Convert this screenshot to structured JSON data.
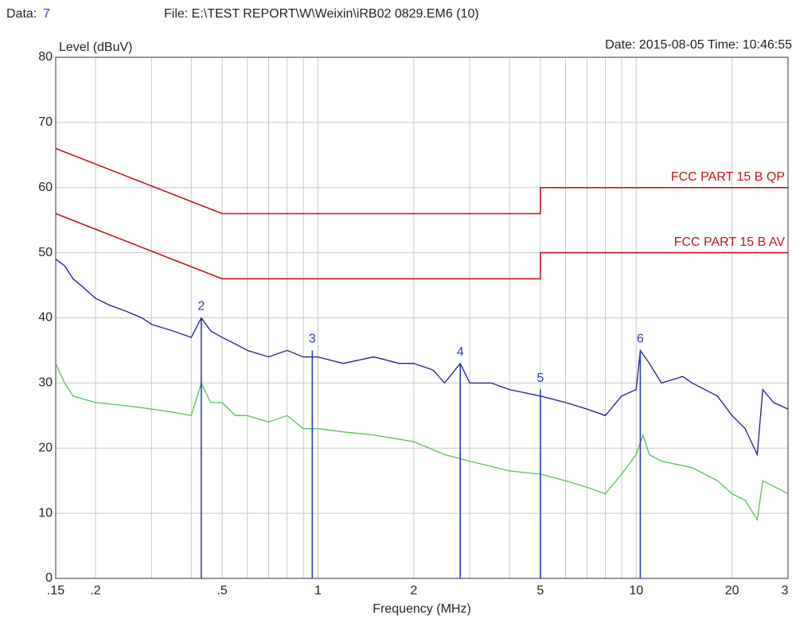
{
  "chart_data": {
    "type": "line",
    "header": {
      "data_label": "Data:",
      "data_value": "7",
      "file": "File: E:\\TEST REPORT\\W\\Weixin\\iRB02 0829.EM6  (10)",
      "date": "Date: 2015-08-05  Time: 10:46:55"
    },
    "y_label": "Level (dBuV)",
    "x_label": "Frequency (MHz)",
    "log_x": true,
    "grid": true,
    "xlim": [
      0.15,
      30
    ],
    "ylim": [
      0,
      80
    ],
    "xticks": [
      {
        "value": 0.15,
        "label": ".15"
      },
      {
        "value": 0.2,
        "label": ".2"
      },
      {
        "value": 0.5,
        "label": ".5"
      },
      1,
      2,
      5,
      10,
      20,
      {
        "value": 30,
        "label": "3"
      }
    ],
    "xminor": [
      0.3,
      0.4,
      0.6,
      0.7,
      0.8,
      0.9,
      3,
      4,
      6,
      7,
      8,
      9
    ],
    "yticks": [
      0,
      10,
      20,
      30,
      40,
      50,
      60,
      70,
      80
    ],
    "series": [
      {
        "name": "FCC PART 15 B QP",
        "color": "#c0141a",
        "x": [
          0.15,
          0.5,
          5,
          5,
          30
        ],
        "values": [
          66,
          56,
          56,
          60,
          60
        ]
      },
      {
        "name": "FCC PART 15 B AV",
        "color": "#c0141a",
        "x": [
          0.15,
          0.5,
          5,
          5,
          30
        ],
        "values": [
          56,
          46,
          46,
          50,
          50
        ]
      },
      {
        "color": "#1c1c8a",
        "x": [
          0.15,
          0.16,
          0.17,
          0.18,
          0.2,
          0.22,
          0.25,
          0.28,
          0.3,
          0.35,
          0.4,
          0.43,
          0.46,
          0.5,
          0.55,
          0.6,
          0.7,
          0.8,
          0.9,
          1,
          1.2,
          1.5,
          1.8,
          2,
          2.3,
          2.5,
          2.8,
          3,
          3.5,
          4,
          5,
          6,
          7,
          8,
          9,
          10,
          10.3,
          11,
          12,
          14,
          15,
          18,
          20,
          22,
          24,
          25,
          27,
          30
        ],
        "values": [
          49,
          48,
          46,
          45,
          43,
          42,
          41,
          40,
          39,
          38,
          37,
          40,
          38,
          37,
          36,
          35,
          34,
          35,
          34,
          34,
          33,
          34,
          33,
          33,
          32,
          30,
          33,
          30,
          30,
          29,
          28,
          27,
          26,
          25,
          28,
          29,
          35,
          33,
          30,
          31,
          30,
          28,
          25,
          23,
          19,
          29,
          27,
          26
        ]
      },
      {
        "color": "#4fc24f",
        "x": [
          0.15,
          0.16,
          0.17,
          0.2,
          0.25,
          0.3,
          0.35,
          0.4,
          0.43,
          0.46,
          0.5,
          0.55,
          0.6,
          0.7,
          0.8,
          0.9,
          1,
          1.2,
          1.5,
          2,
          2.5,
          3,
          4,
          5,
          6,
          7,
          8,
          9,
          10,
          10.5,
          11,
          12,
          15,
          18,
          20,
          22,
          24,
          25,
          30
        ],
        "values": [
          33,
          30,
          28,
          27,
          26.5,
          26,
          25.5,
          25,
          30,
          27,
          27,
          25,
          25,
          24,
          25,
          23,
          23,
          22.5,
          22,
          21,
          19,
          18,
          16.5,
          16,
          15,
          14,
          13,
          16,
          19,
          22,
          19,
          18,
          17,
          15,
          13,
          12,
          9,
          15,
          13
        ]
      }
    ],
    "markers": [
      {
        "label": "2",
        "x": 0.43,
        "value": 40
      },
      {
        "label": "3",
        "x": 0.96,
        "value": 35
      },
      {
        "label": "4",
        "x": 2.8,
        "value": 33
      },
      {
        "label": "5",
        "x": 5,
        "value": 29
      },
      {
        "label": "6",
        "x": 10.3,
        "value": 35
      }
    ]
  }
}
